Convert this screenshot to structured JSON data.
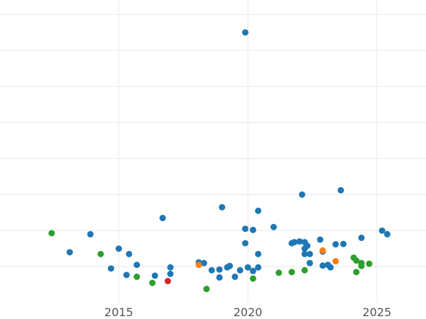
{
  "chart_data": {
    "type": "scatter",
    "title": "",
    "xlabel": "",
    "ylabel": "",
    "xlim": [
      2010.4,
      2026.9
    ],
    "ylim": [
      0,
      8.4
    ],
    "grid": true,
    "x_ticks": [
      2015,
      2020,
      2025
    ],
    "x_tick_labels": [
      "2015",
      "2020",
      "2025"
    ],
    "y_gridlines": [
      1,
      2,
      3,
      4,
      5,
      6,
      7,
      8
    ],
    "colors": {
      "blue": "#1f77b4",
      "green": "#2ca02c",
      "orange": "#ff7f0e",
      "red": "#d62728"
    },
    "series": [
      {
        "color": "blue",
        "points": [
          [
            2013.1,
            1.4
          ],
          [
            2013.9,
            1.9
          ],
          [
            2014.7,
            0.95
          ],
          [
            2015.0,
            1.5
          ],
          [
            2015.3,
            0.77
          ],
          [
            2015.4,
            1.35
          ],
          [
            2015.7,
            1.05
          ],
          [
            2016.4,
            0.75
          ],
          [
            2016.7,
            2.35
          ],
          [
            2017.0,
            0.8
          ],
          [
            2017.0,
            0.98
          ],
          [
            2018.1,
            1.12
          ],
          [
            2018.3,
            1.1
          ],
          [
            2018.6,
            0.9
          ],
          [
            2018.9,
            0.7
          ],
          [
            2018.9,
            0.92
          ],
          [
            2019.0,
            2.65
          ],
          [
            2019.2,
            0.98
          ],
          [
            2019.3,
            1.02
          ],
          [
            2019.5,
            0.72
          ],
          [
            2019.7,
            0.9
          ],
          [
            2019.9,
            1.65
          ],
          [
            2019.9,
            2.05
          ],
          [
            2019.9,
            7.5
          ],
          [
            2020.0,
            0.98
          ],
          [
            2020.2,
            2.02
          ],
          [
            2020.2,
            0.88
          ],
          [
            2020.4,
            2.55
          ],
          [
            2020.4,
            1.35
          ],
          [
            2020.4,
            0.98
          ],
          [
            2021.0,
            2.1
          ],
          [
            2021.7,
            1.65
          ],
          [
            2021.8,
            1.68
          ],
          [
            2022.0,
            1.7
          ],
          [
            2022.1,
            3.0
          ],
          [
            2022.2,
            1.5
          ],
          [
            2022.2,
            1.35
          ],
          [
            2022.2,
            1.68
          ],
          [
            2022.3,
            1.58
          ],
          [
            2022.4,
            1.1
          ],
          [
            2022.4,
            1.35
          ],
          [
            2022.8,
            1.75
          ],
          [
            2022.9,
            1.03
          ],
          [
            2022.9,
            1.42
          ],
          [
            2023.1,
            1.05
          ],
          [
            2023.2,
            0.98
          ],
          [
            2023.4,
            1.62
          ],
          [
            2023.6,
            3.12
          ],
          [
            2023.7,
            1.63
          ],
          [
            2024.4,
            1.8
          ],
          [
            2025.2,
            2.0
          ],
          [
            2025.4,
            1.9
          ]
        ]
      },
      {
        "color": "green",
        "points": [
          [
            2012.4,
            1.93
          ],
          [
            2014.3,
            1.35
          ],
          [
            2015.7,
            0.72
          ],
          [
            2016.3,
            0.55
          ],
          [
            2018.4,
            0.38
          ],
          [
            2020.2,
            0.67
          ],
          [
            2021.2,
            0.83
          ],
          [
            2021.7,
            0.85
          ],
          [
            2022.2,
            0.9
          ],
          [
            2024.1,
            1.25
          ],
          [
            2024.2,
            1.17
          ],
          [
            2024.2,
            0.85
          ],
          [
            2024.4,
            1.02
          ],
          [
            2024.4,
            1.1
          ],
          [
            2024.7,
            1.08
          ]
        ]
      },
      {
        "color": "orange",
        "points": [
          [
            2018.1,
            1.05
          ],
          [
            2022.9,
            1.45
          ],
          [
            2023.4,
            1.15
          ]
        ]
      },
      {
        "color": "red",
        "points": [
          [
            2016.9,
            0.6
          ]
        ]
      }
    ]
  }
}
